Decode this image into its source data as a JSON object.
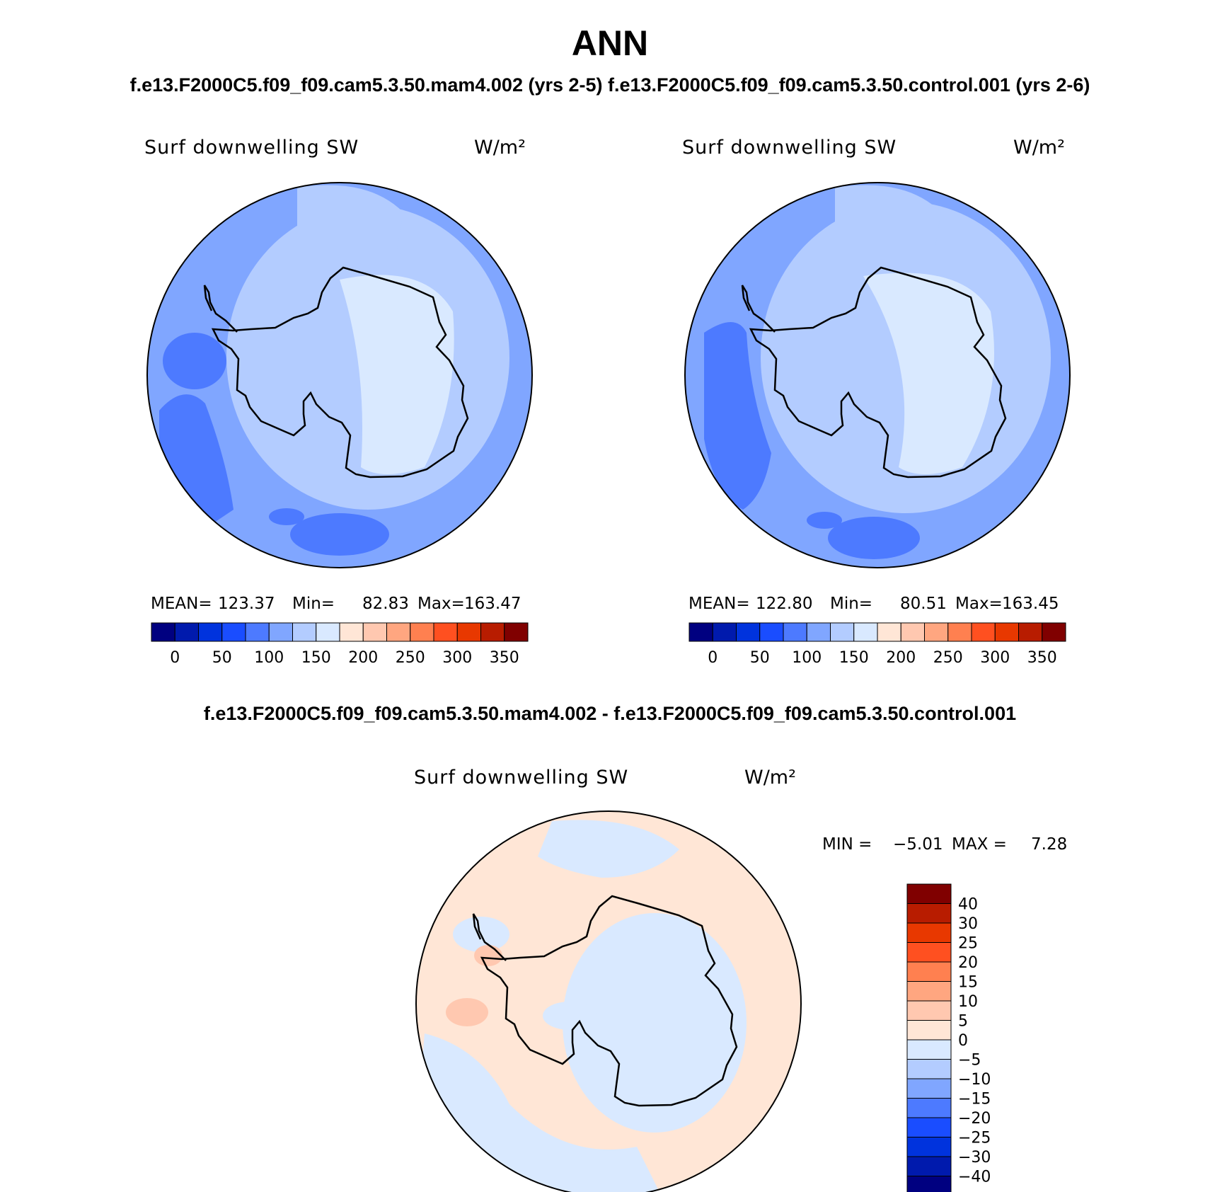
{
  "title": "ANN",
  "subtitle": "f.e13.F2000C5.f09_f09.cam5.3.50.mam4.002 (yrs 2-5) f.e13.F2000C5.f09_f09.cam5.3.50.control.001 (yrs 2-6)",
  "diff_title": "f.e13.F2000C5.f09_f09.cam5.3.50.mam4.002 - f.e13.F2000C5.f09_f09.cam5.3.50.control.001",
  "colors": {
    "full": [
      "#000080",
      "#001aad",
      "#0033dd",
      "#1a4dff",
      "#4d7aff",
      "#80a6ff",
      "#b3ccff",
      "#d9e9ff",
      "#ffe6d6",
      "#ffc8b0",
      "#ffa680",
      "#ff8050",
      "#ff5020",
      "#e83800",
      "#b81c00",
      "#800000"
    ],
    "diff": [
      "#000080",
      "#001aad",
      "#0033dd",
      "#1a4dff",
      "#4d7aff",
      "#80a6ff",
      "#b3ccff",
      "#d9e9ff",
      "#ffe6d6",
      "#ffc8b0",
      "#ffa680",
      "#ff8050",
      "#ff5020",
      "#e83800",
      "#b81c00",
      "#800000"
    ],
    "coastline": "#000000"
  },
  "panels": [
    {
      "variable": "Surf downwelling SW",
      "units": "W/m²",
      "stats": {
        "mean_label": "MEAN=",
        "mean": "123.37",
        "min_label": "Min=",
        "min": "82.83",
        "max_label": "Max=",
        "max": "163.47"
      }
    },
    {
      "variable": "Surf downwelling SW",
      "units": "W/m²",
      "stats": {
        "mean_label": "MEAN=",
        "mean": "122.80",
        "min_label": "Min=",
        "min": "80.51",
        "max_label": "Max=",
        "max": "163.45"
      }
    }
  ],
  "colorbar_full": {
    "labels": [
      "0",
      "50",
      "100",
      "150",
      "200",
      "250",
      "300",
      "350"
    ]
  },
  "diff_panel": {
    "variable": "Surf downwelling SW",
    "units": "W/m²",
    "min_label": "MIN =",
    "min": "−5.01",
    "max_label": "MAX =",
    "max": "7.28",
    "colorbar_labels": [
      "40",
      "30",
      "25",
      "20",
      "15",
      "10",
      "5",
      "0",
      "−5",
      "−10",
      "−15",
      "−20",
      "−25",
      "−30",
      "−40"
    ]
  }
}
